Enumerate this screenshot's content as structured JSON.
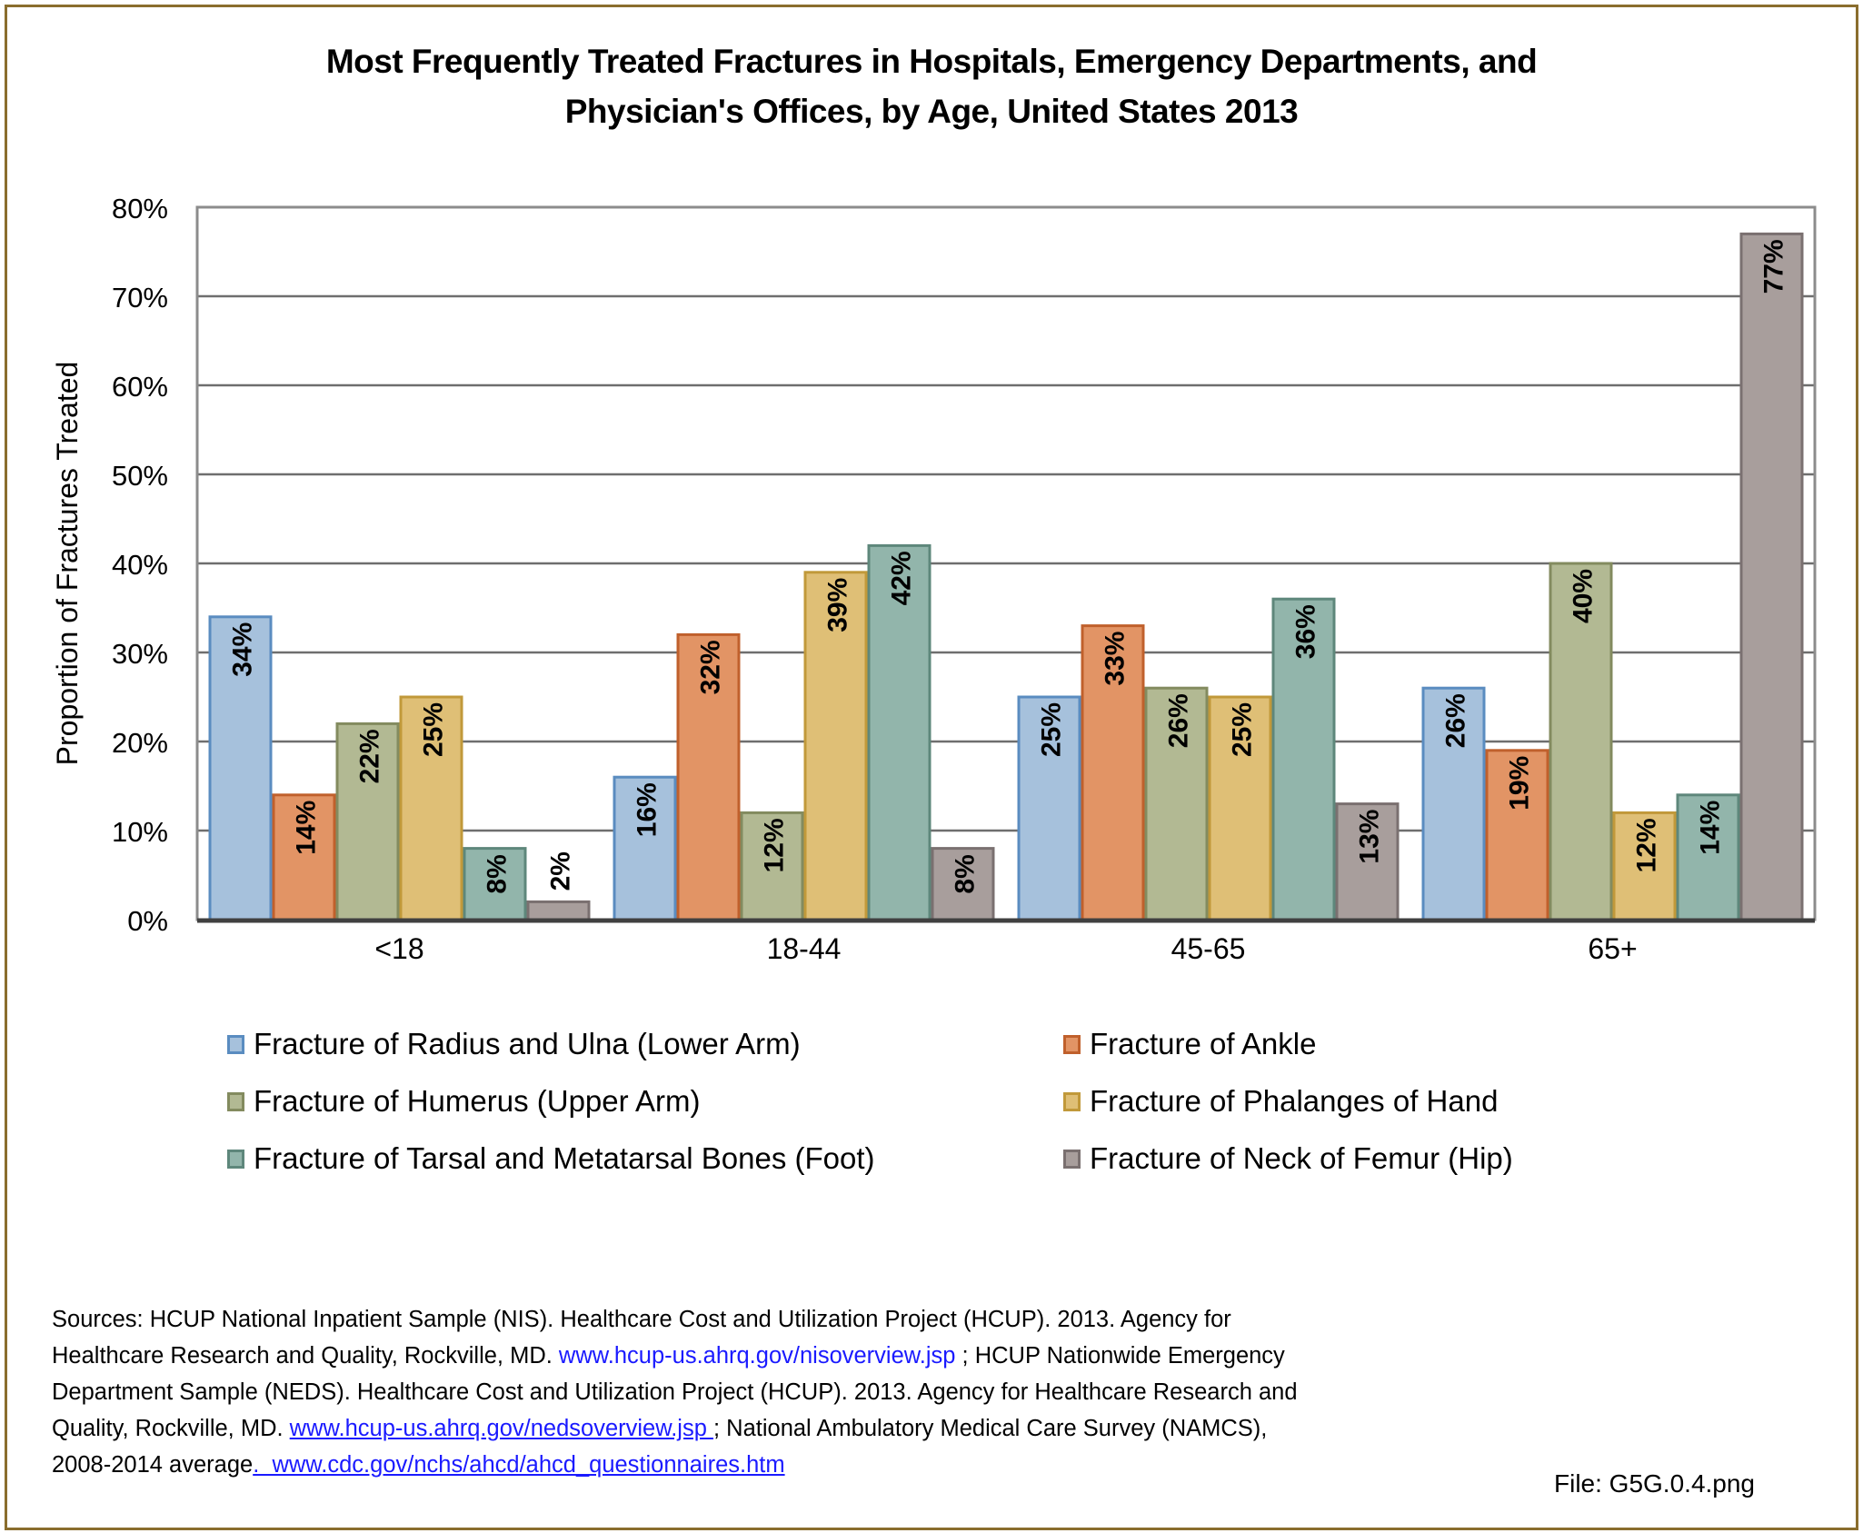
{
  "chart_data": {
    "type": "bar",
    "title_line1": "Most Frequently Treated Fractures in Hospitals, Emergency Departments, and",
    "title_line2": "Physician's Offices, by Age, United States 2013",
    "xlabel": "",
    "ylabel": "Proportion of Fractures Treated",
    "ylim": [
      0,
      80
    ],
    "yticks": [
      0,
      10,
      20,
      30,
      40,
      50,
      60,
      70,
      80
    ],
    "ytick_labels": [
      "0%",
      "10%",
      "20%",
      "30%",
      "40%",
      "50%",
      "60%",
      "70%",
      "80%"
    ],
    "grid": true,
    "legend_position": "bottom",
    "categories": [
      "<18",
      "18-44",
      "45-65",
      "65+"
    ],
    "series": [
      {
        "name": "Fracture of Radius and Ulna (Lower Arm)",
        "fill": "#a6c1dc",
        "stroke": "#5a8cc0",
        "values": [
          34,
          16,
          25,
          26
        ],
        "labels": [
          "34%",
          "16%",
          "25%",
          "26%"
        ]
      },
      {
        "name": "Fracture of Ankle",
        "fill": "#e29465",
        "stroke": "#c0602c",
        "values": [
          14,
          32,
          33,
          19
        ],
        "labels": [
          "14%",
          "32%",
          "33%",
          "19%"
        ]
      },
      {
        "name": "Fracture of Humerus (Upper Arm)",
        "fill": "#b2b993",
        "stroke": "#838b5f",
        "values": [
          22,
          12,
          26,
          40
        ],
        "labels": [
          "22%",
          "12%",
          "26%",
          "40%"
        ]
      },
      {
        "name": "Fracture of Phalanges of Hand",
        "fill": "#dfbf76",
        "stroke": "#c1993a",
        "values": [
          25,
          39,
          25,
          12
        ],
        "labels": [
          "25%",
          "39%",
          "25%",
          "12%"
        ]
      },
      {
        "name": "Fracture of Tarsal and Metatarsal Bones (Foot)",
        "fill": "#92b5ab",
        "stroke": "#5e877b",
        "values": [
          8,
          42,
          36,
          14
        ],
        "labels": [
          "8%",
          "42%",
          "36%",
          "14%"
        ]
      },
      {
        "name": "Fracture of Neck of Femur (Hip)",
        "fill": "#a89e9c",
        "stroke": "#7a7070",
        "values": [
          2,
          8,
          13,
          77
        ],
        "labels": [
          "2%",
          "8%",
          "13%",
          "77%"
        ]
      }
    ]
  },
  "legend_order": [
    0,
    1,
    2,
    3,
    4,
    5
  ],
  "sources": {
    "line1": "Sources: HCUP National Inpatient Sample (NIS). Healthcare Cost and Utilization Project (HCUP). 2013. Agency for",
    "line2_text": "Healthcare Research and Quality, Rockville, MD. ",
    "line2_link": "www.hcup-us.ahrq.gov/nisoverview.jsp",
    "line2_after": " ; HCUP Nationwide Emergency",
    "line3": "Department Sample (NEDS). Healthcare Cost and Utilization Project (HCUP). 2013. Agency for Healthcare Research and",
    "line4_text": "Quality, Rockville, MD. ",
    "line4_link": "www.hcup-us.ahrq.gov/nedsoverview.jsp ",
    "line4_after": "; National Ambulatory Medical Care Survey (NAMCS),",
    "line5_text": "2008-2014 average",
    "line5_link": ".  www.cdc.gov/nchs/ahcd/ahcd_questionnaires.htm"
  },
  "file_label": "File: G5G.0.4.png",
  "colors": {
    "frame": "#8a6d2e",
    "gridline": "#6e6e6e",
    "axis": "#404040",
    "link": "#1a1aff"
  }
}
